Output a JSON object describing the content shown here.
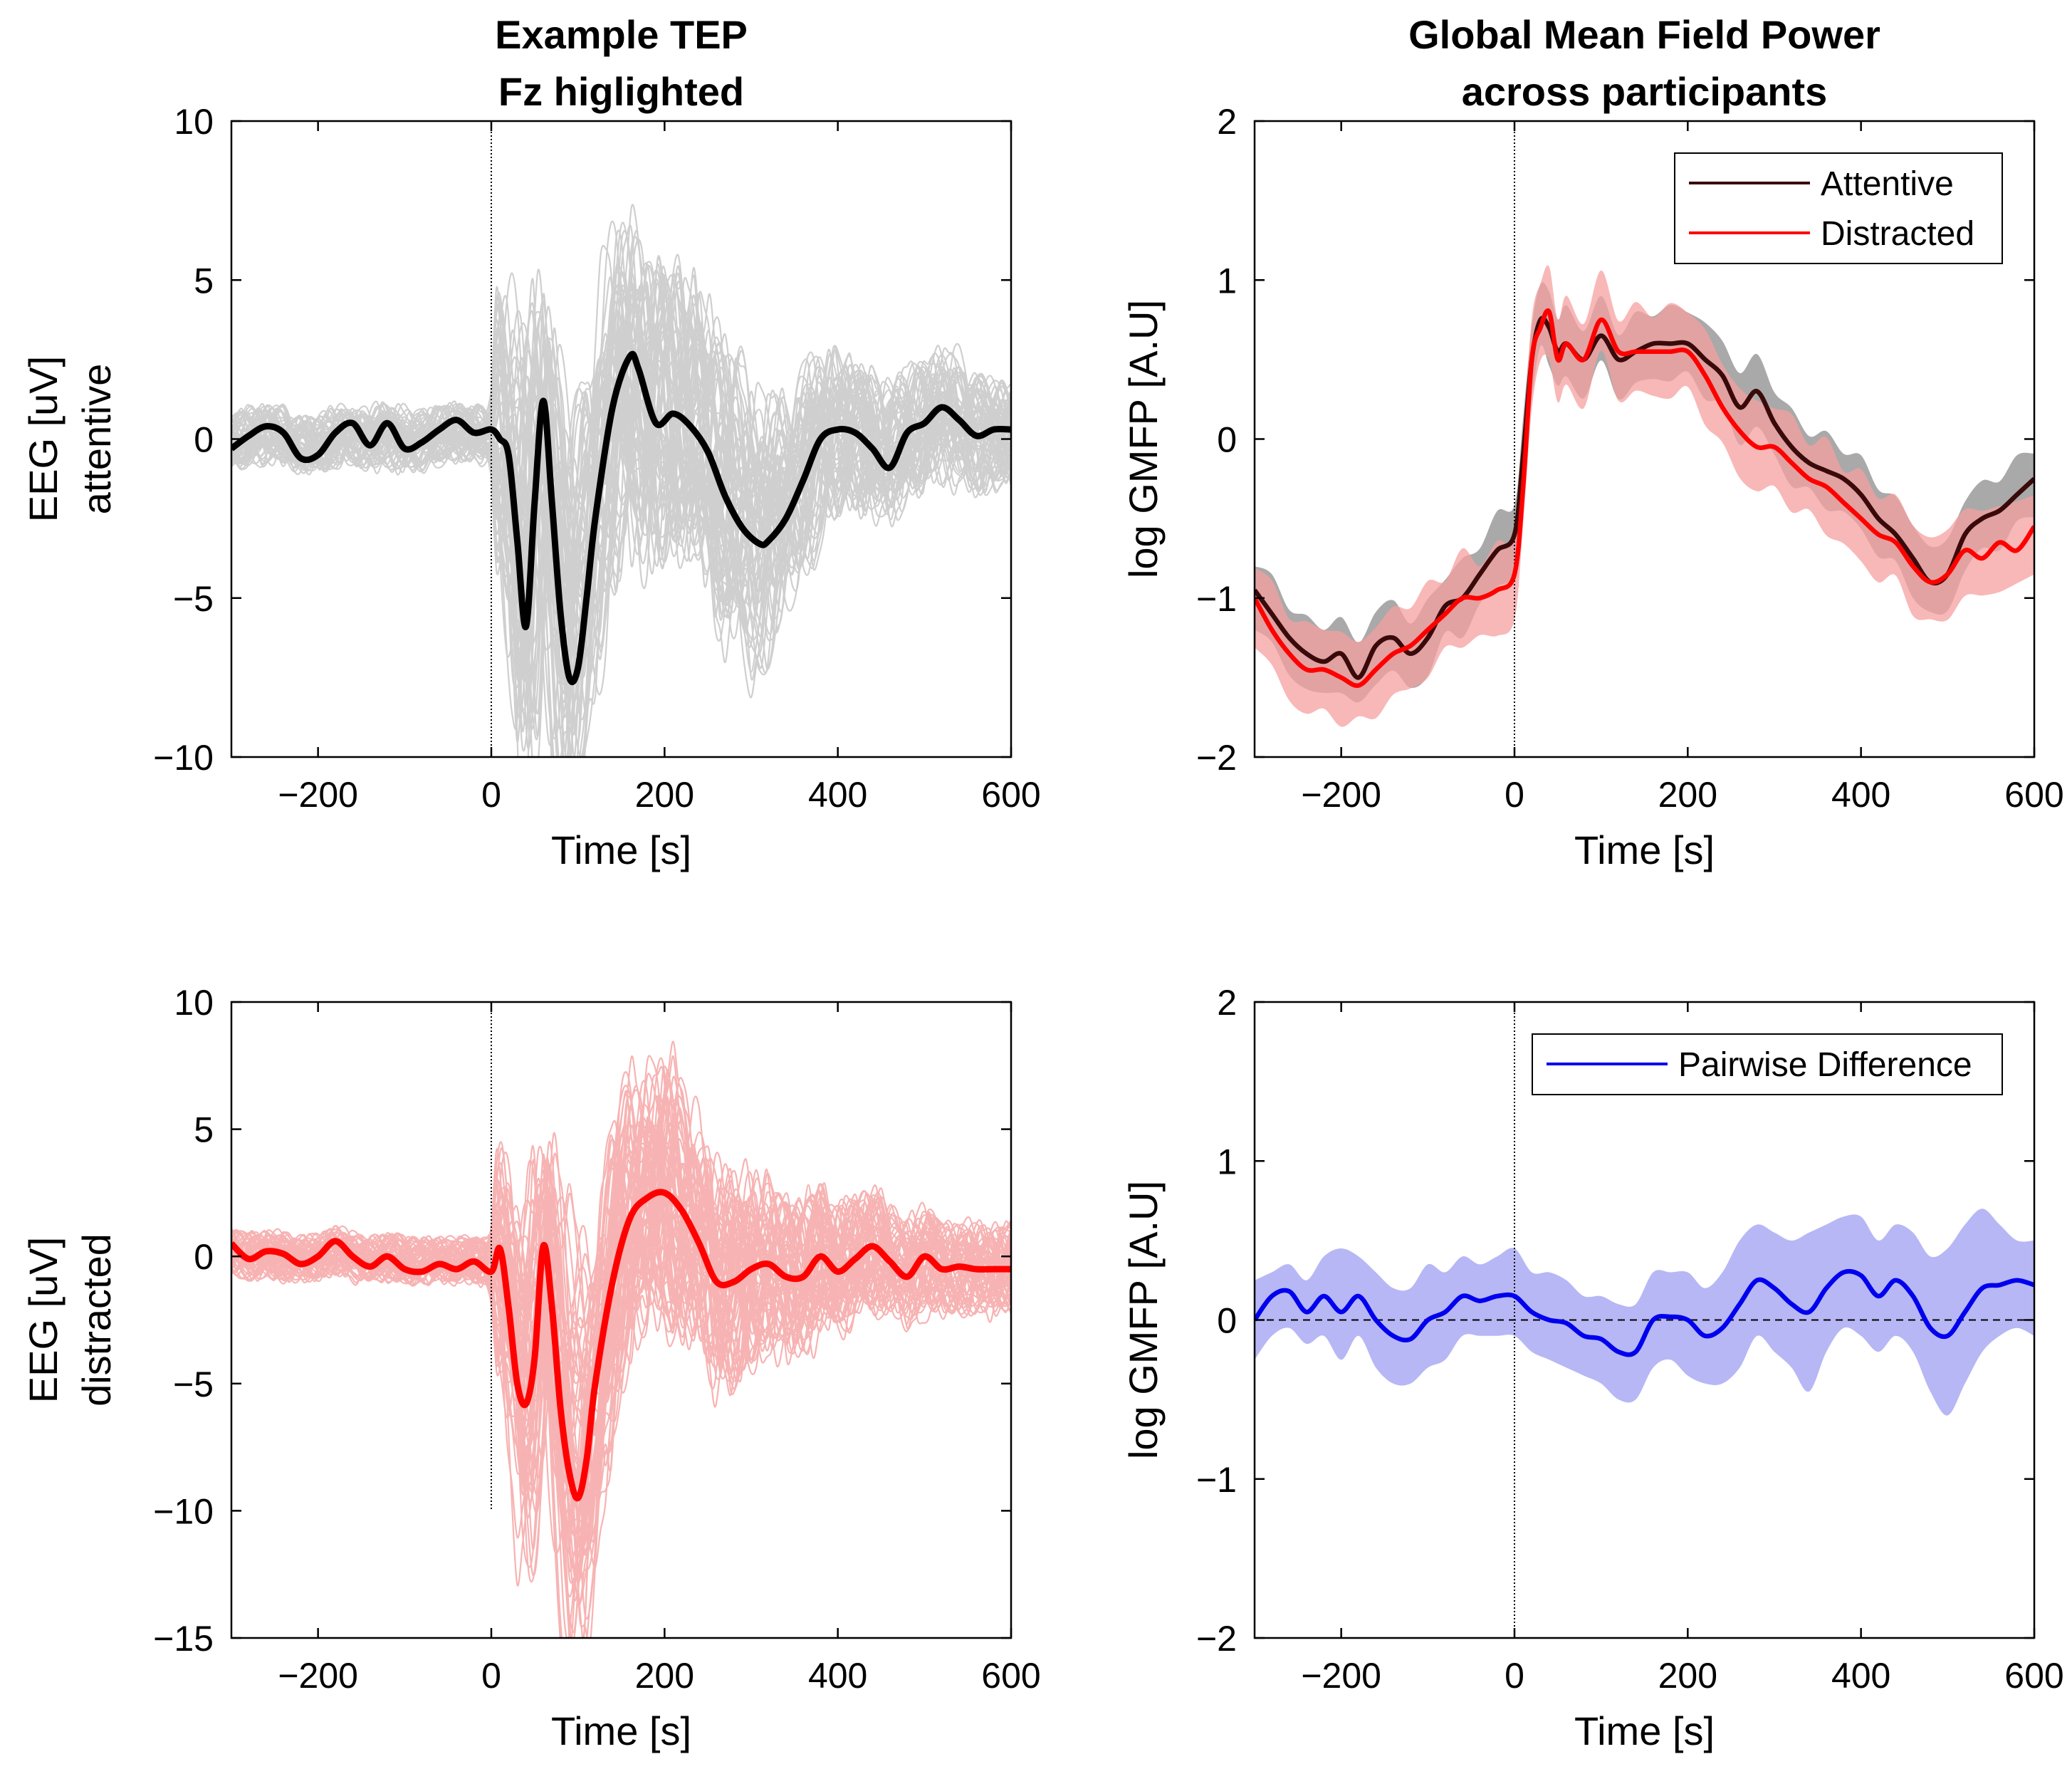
{
  "chart_data": [
    {
      "id": "tep-attentive",
      "type": "line",
      "title": [
        "Example TEP",
        "Fz higlighted"
      ],
      "xlabel": "Time [s]",
      "ylabel": [
        "EEG [uV]",
        "attentive"
      ],
      "xlim": [
        -300,
        600
      ],
      "ylim": [
        -10,
        10
      ],
      "xticks": [
        -200,
        0,
        200,
        400,
        600
      ],
      "xtick_labels": [
        "−200",
        "0",
        "200",
        "400",
        "600"
      ],
      "yticks": [
        -10,
        -5,
        0,
        5,
        10
      ],
      "ytick_labels": [
        "−10",
        "−5",
        "0",
        "5",
        "10"
      ],
      "stim_marker": {
        "x": 0,
        "y_range": [
          -10,
          10
        ],
        "style": "dotted"
      },
      "background_traces": {
        "count": 60,
        "color": "#cfcfcf",
        "description": "individual channels"
      },
      "series": [
        {
          "name": "Fz",
          "color": "#000000",
          "x": [
            -300,
            -280,
            -260,
            -240,
            -220,
            -200,
            -180,
            -160,
            -140,
            -120,
            -100,
            -80,
            -60,
            -40,
            -20,
            0,
            10,
            20,
            30,
            40,
            50,
            60,
            70,
            80,
            90,
            100,
            110,
            120,
            140,
            160,
            170,
            190,
            210,
            230,
            250,
            270,
            290,
            310,
            320,
            340,
            360,
            380,
            400,
            420,
            440,
            460,
            480,
            500,
            520,
            540,
            560,
            580,
            600
          ],
          "y": [
            -0.3,
            0.1,
            0.4,
            0.2,
            -0.6,
            -0.5,
            0.2,
            0.5,
            -0.2,
            0.5,
            -0.3,
            -0.1,
            0.3,
            0.6,
            0.2,
            0.3,
            0.0,
            -0.5,
            -3.2,
            -5.9,
            -2.0,
            1.2,
            -2.0,
            -5.5,
            -7.5,
            -7.2,
            -5.0,
            -2.5,
            1.0,
            2.6,
            2.2,
            0.5,
            0.8,
            0.4,
            -0.4,
            -1.8,
            -2.8,
            -3.3,
            -3.2,
            -2.5,
            -1.3,
            0.0,
            0.3,
            0.2,
            -0.3,
            -0.9,
            0.2,
            0.5,
            1.0,
            0.6,
            0.1,
            0.3,
            0.3
          ]
        }
      ]
    },
    {
      "id": "gmfp-conditions",
      "type": "line",
      "title": [
        "Global Mean Field Power",
        "across participants"
      ],
      "xlabel": "Time [s]",
      "ylabel": [
        "log GMFP [A.U]"
      ],
      "xlim": [
        -300,
        600
      ],
      "ylim": [
        -2,
        2
      ],
      "xticks": [
        -200,
        0,
        200,
        400,
        600
      ],
      "xtick_labels": [
        "−200",
        "0",
        "200",
        "400",
        "600"
      ],
      "yticks": [
        -2,
        -1,
        0,
        1,
        2
      ],
      "ytick_labels": [
        "−2",
        "−1",
        "0",
        "1",
        "2"
      ],
      "stim_marker": {
        "x": 0,
        "y_range": [
          -2,
          2
        ],
        "style": "dotted"
      },
      "legend": {
        "position": "top-right",
        "entries": [
          "Attentive",
          "Distracted"
        ]
      },
      "series": [
        {
          "name": "Attentive",
          "color": "#3a0a0a",
          "band_color": "#9a9a9a",
          "x": [
            -300,
            -280,
            -260,
            -240,
            -220,
            -200,
            -180,
            -160,
            -140,
            -120,
            -100,
            -80,
            -60,
            -40,
            -20,
            0,
            10,
            20,
            30,
            40,
            50,
            60,
            80,
            100,
            120,
            140,
            160,
            180,
            200,
            220,
            240,
            260,
            280,
            300,
            320,
            340,
            360,
            380,
            400,
            420,
            440,
            460,
            480,
            500,
            520,
            540,
            560,
            580,
            600
          ],
          "y": [
            -0.95,
            -1.1,
            -1.25,
            -1.35,
            -1.4,
            -1.35,
            -1.5,
            -1.3,
            -1.25,
            -1.35,
            -1.25,
            -1.05,
            -1.0,
            -0.85,
            -0.7,
            -0.6,
            -0.1,
            0.5,
            0.75,
            0.7,
            0.55,
            0.6,
            0.5,
            0.65,
            0.5,
            0.55,
            0.6,
            0.6,
            0.6,
            0.5,
            0.4,
            0.2,
            0.3,
            0.1,
            -0.05,
            -0.15,
            -0.2,
            -0.25,
            -0.35,
            -0.5,
            -0.6,
            -0.75,
            -0.9,
            -0.85,
            -0.6,
            -0.5,
            -0.45,
            -0.35,
            -0.25
          ],
          "band": 0.2
        },
        {
          "name": "Distracted",
          "color": "#ff0000",
          "band_color": "#f6a0a0",
          "x": [
            -300,
            -280,
            -260,
            -240,
            -220,
            -200,
            -180,
            -160,
            -140,
            -120,
            -100,
            -80,
            -60,
            -40,
            -20,
            0,
            10,
            20,
            30,
            40,
            50,
            60,
            80,
            100,
            120,
            140,
            160,
            180,
            200,
            220,
            240,
            260,
            280,
            300,
            320,
            340,
            360,
            380,
            400,
            420,
            440,
            460,
            480,
            500,
            520,
            540,
            560,
            580,
            600
          ],
          "y": [
            -1.0,
            -1.2,
            -1.35,
            -1.45,
            -1.45,
            -1.5,
            -1.55,
            -1.45,
            -1.35,
            -1.3,
            -1.2,
            -1.1,
            -1.0,
            -1.0,
            -0.95,
            -0.85,
            -0.3,
            0.5,
            0.7,
            0.8,
            0.5,
            0.6,
            0.5,
            0.75,
            0.55,
            0.55,
            0.55,
            0.55,
            0.55,
            0.4,
            0.2,
            0.05,
            -0.05,
            -0.05,
            -0.15,
            -0.25,
            -0.3,
            -0.4,
            -0.5,
            -0.6,
            -0.65,
            -0.8,
            -0.9,
            -0.85,
            -0.7,
            -0.75,
            -0.65,
            -0.7,
            -0.55
          ],
          "band": 0.25
        }
      ]
    },
    {
      "id": "tep-distracted",
      "type": "line",
      "title": [],
      "xlabel": "Time [s]",
      "ylabel": [
        "EEG [uV]",
        "distracted"
      ],
      "xlim": [
        -300,
        600
      ],
      "ylim": [
        -15,
        10
      ],
      "xticks": [
        -200,
        0,
        200,
        400,
        600
      ],
      "xtick_labels": [
        "−200",
        "0",
        "200",
        "400",
        "600"
      ],
      "yticks": [
        -15,
        -10,
        -5,
        0,
        5,
        10
      ],
      "ytick_labels": [
        "−15",
        "−10",
        "−5",
        "0",
        "5",
        "10"
      ],
      "stim_marker": {
        "x": 0,
        "y_range": [
          -10,
          10
        ],
        "style": "dotted"
      },
      "background_traces": {
        "count": 60,
        "color": "#f7b3b3",
        "description": "individual channels"
      },
      "series": [
        {
          "name": "Fz",
          "color": "#ff0000",
          "x": [
            -300,
            -280,
            -260,
            -240,
            -220,
            -200,
            -180,
            -160,
            -140,
            -120,
            -100,
            -80,
            -60,
            -40,
            -20,
            0,
            10,
            20,
            30,
            40,
            50,
            60,
            70,
            80,
            90,
            100,
            110,
            120,
            140,
            160,
            180,
            200,
            220,
            240,
            260,
            280,
            300,
            320,
            340,
            360,
            380,
            400,
            420,
            440,
            460,
            480,
            500,
            520,
            540,
            560,
            580,
            600
          ],
          "y": [
            0.5,
            -0.1,
            0.2,
            0.1,
            -0.3,
            0.0,
            0.6,
            0.0,
            -0.4,
            0.0,
            -0.5,
            -0.6,
            -0.3,
            -0.5,
            -0.2,
            -0.6,
            0.3,
            -2.0,
            -5.0,
            -5.8,
            -4.0,
            0.4,
            -2.0,
            -6.0,
            -8.5,
            -9.5,
            -8.0,
            -5.0,
            -1.0,
            1.5,
            2.3,
            2.5,
            1.8,
            0.5,
            -1.0,
            -1.0,
            -0.5,
            -0.3,
            -0.8,
            -0.8,
            0.0,
            -0.6,
            -0.1,
            0.4,
            -0.2,
            -0.8,
            0.0,
            -0.5,
            -0.4,
            -0.5,
            -0.5,
            -0.5
          ]
        }
      ]
    },
    {
      "id": "gmfp-difference",
      "type": "line",
      "title": [],
      "xlabel": "Time [s]",
      "ylabel": [
        "log GMFP [A.U]"
      ],
      "xlim": [
        -300,
        600
      ],
      "ylim": [
        -2,
        2
      ],
      "xticks": [
        -200,
        0,
        200,
        400,
        600
      ],
      "xtick_labels": [
        "−200",
        "0",
        "200",
        "400",
        "600"
      ],
      "yticks": [
        -2,
        -1,
        0,
        1,
        2
      ],
      "ytick_labels": [
        "−2",
        "−1",
        "0",
        "1",
        "2"
      ],
      "stim_marker": {
        "x": 0,
        "y_range": [
          -2,
          2
        ],
        "style": "dotted"
      },
      "zero_line": {
        "y": 0,
        "style": "dashed"
      },
      "legend": {
        "position": "top-right",
        "entries": [
          "Pairwise Difference"
        ]
      },
      "series": [
        {
          "name": "Pairwise Difference",
          "color": "#0000ee",
          "band_color": "#9f9ff2",
          "x": [
            -300,
            -280,
            -260,
            -240,
            -220,
            -200,
            -180,
            -160,
            -140,
            -120,
            -100,
            -80,
            -60,
            -40,
            -20,
            0,
            20,
            40,
            60,
            80,
            100,
            120,
            140,
            160,
            180,
            200,
            220,
            240,
            260,
            280,
            300,
            320,
            340,
            360,
            380,
            400,
            420,
            440,
            460,
            480,
            500,
            520,
            540,
            560,
            580,
            600
          ],
          "y": [
            0.0,
            0.15,
            0.18,
            0.05,
            0.15,
            0.05,
            0.15,
            0.0,
            -0.1,
            -0.12,
            0.0,
            0.05,
            0.15,
            0.12,
            0.15,
            0.15,
            0.05,
            0.0,
            -0.02,
            -0.1,
            -0.12,
            -0.2,
            -0.2,
            0.0,
            0.02,
            0.0,
            -0.1,
            -0.05,
            0.1,
            0.25,
            0.2,
            0.1,
            0.05,
            0.2,
            0.3,
            0.28,
            0.15,
            0.25,
            0.15,
            -0.05,
            -0.1,
            0.05,
            0.2,
            0.22,
            0.25,
            0.22
          ],
          "band_upper": [
            0.25,
            0.3,
            0.35,
            0.25,
            0.4,
            0.45,
            0.4,
            0.3,
            0.2,
            0.2,
            0.35,
            0.3,
            0.4,
            0.35,
            0.4,
            0.45,
            0.3,
            0.3,
            0.25,
            0.15,
            0.15,
            0.1,
            0.1,
            0.3,
            0.3,
            0.3,
            0.2,
            0.3,
            0.5,
            0.6,
            0.55,
            0.5,
            0.55,
            0.6,
            0.65,
            0.65,
            0.5,
            0.6,
            0.55,
            0.4,
            0.45,
            0.6,
            0.7,
            0.6,
            0.5,
            0.5
          ],
          "band_lower": [
            -0.25,
            -0.1,
            -0.05,
            -0.15,
            -0.1,
            -0.25,
            -0.1,
            -0.3,
            -0.4,
            -0.4,
            -0.3,
            -0.25,
            -0.1,
            -0.1,
            -0.1,
            -0.1,
            -0.2,
            -0.25,
            -0.3,
            -0.35,
            -0.4,
            -0.5,
            -0.5,
            -0.3,
            -0.25,
            -0.35,
            -0.4,
            -0.4,
            -0.3,
            -0.1,
            -0.2,
            -0.3,
            -0.45,
            -0.2,
            -0.05,
            -0.1,
            -0.2,
            -0.1,
            -0.2,
            -0.45,
            -0.6,
            -0.4,
            -0.2,
            -0.1,
            -0.05,
            -0.1
          ]
        }
      ]
    }
  ]
}
